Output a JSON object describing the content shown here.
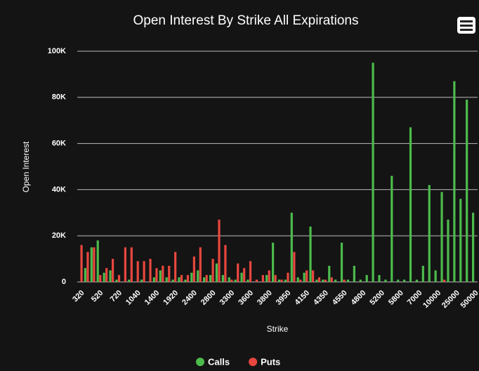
{
  "chart_data": {
    "type": "bar",
    "title": "Open Interest By Strike All Expirations",
    "xlabel": "Strike",
    "ylabel": "Open Interest",
    "categories": [
      "320",
      null,
      null,
      "520",
      null,
      null,
      "720",
      null,
      null,
      "1040",
      null,
      null,
      "1400",
      null,
      null,
      "1920",
      null,
      null,
      "2400",
      null,
      null,
      "2800",
      null,
      null,
      "3300",
      null,
      null,
      "3600",
      null,
      null,
      "3800",
      null,
      null,
      "3950",
      null,
      null,
      "4150",
      null,
      null,
      "4350",
      null,
      null,
      "4550",
      null,
      null,
      "4800",
      null,
      null,
      "5200",
      null,
      null,
      "5800",
      null,
      null,
      "7000",
      null,
      null,
      "10000",
      null,
      null,
      "25000",
      null,
      null,
      "50000"
    ],
    "series": [
      {
        "name": "Calls",
        "color": "#4cbb4c",
        "values": [
          0,
          6000,
          15000,
          18000,
          4000,
          5000,
          1000,
          0,
          1000,
          0,
          1000,
          0,
          2000,
          5000,
          2000,
          1000,
          2000,
          1000,
          4000,
          5000,
          2000,
          3000,
          8000,
          3000,
          2000,
          1000,
          4000,
          1000,
          0,
          0,
          3000,
          17000,
          1000,
          1000,
          30000,
          2000,
          4000,
          24000,
          1000,
          1000,
          7000,
          1000,
          17000,
          1000,
          7000,
          1000,
          3000,
          95000,
          3000,
          1000,
          46000,
          1000,
          1000,
          67000,
          1000,
          7000,
          42000,
          5000,
          39000,
          27000,
          87000,
          36000,
          79000,
          30000
        ]
      },
      {
        "name": "Puts",
        "color": "#e8473f",
        "values": [
          16000,
          13000,
          15000,
          3000,
          6000,
          10000,
          3000,
          15000,
          15000,
          9000,
          9000,
          10000,
          6000,
          7000,
          7000,
          13000,
          3000,
          3000,
          11000,
          15000,
          3000,
          10000,
          27000,
          16000,
          1000,
          8000,
          6000,
          9000,
          1000,
          3000,
          5000,
          3000,
          1000,
          4000,
          13000,
          1000,
          5000,
          5000,
          2000,
          1000,
          2000,
          0,
          1000,
          0,
          0,
          0,
          0,
          0,
          0,
          0,
          0,
          0,
          0,
          0,
          0,
          0,
          0,
          0,
          1000,
          0,
          0,
          0,
          0,
          0
        ]
      }
    ],
    "ylim": [
      0,
      100000
    ],
    "yticks": [
      0,
      {
        "value": 20000,
        "label": "20K"
      },
      {
        "value": 40000,
        "label": "40K"
      },
      {
        "value": 60000,
        "label": "60K"
      },
      {
        "value": 80000,
        "label": "80K"
      },
      {
        "value": 100000,
        "label": "100K"
      }
    ],
    "grid": true,
    "legend": "bottom"
  }
}
